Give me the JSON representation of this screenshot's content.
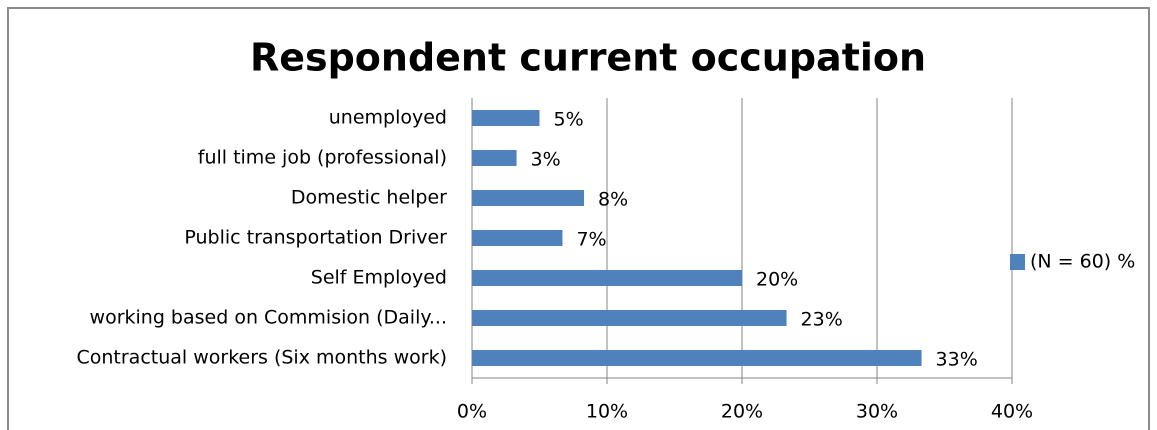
{
  "chart_data": {
    "type": "bar",
    "orientation": "horizontal",
    "title": "Respondent current occupation",
    "categories": [
      "unemployed",
      "full time job (professional)",
      "Domestic helper",
      "Public transportation Driver",
      "Self Employed",
      "working based on Commision (Daily...",
      "Contractual workers (Six months work)"
    ],
    "series": [
      {
        "name": "(N = 60) %",
        "color": "#4f81bd",
        "values": [
          5,
          3.3,
          8.3,
          6.7,
          20,
          23.3,
          33.3
        ],
        "value_labels": [
          "5%",
          "3%",
          "8%",
          "7%",
          "20%",
          "23%",
          "33%"
        ]
      }
    ],
    "xlim": [
      0,
      40
    ],
    "xticks": [
      {
        "value": 0,
        "label": "0%"
      },
      {
        "value": 10,
        "label": "10%"
      },
      {
        "value": 20,
        "label": "20%"
      },
      {
        "value": 30,
        "label": "30%"
      },
      {
        "value": 40,
        "label": "40%"
      }
    ],
    "grid": true,
    "legend": "right"
  }
}
